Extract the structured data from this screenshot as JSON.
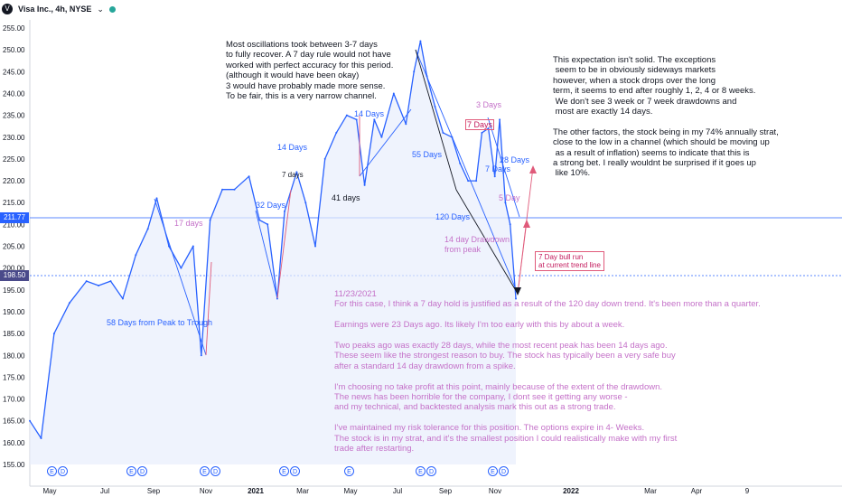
{
  "header": {
    "logo_glyph": "V",
    "title": "Visa Inc., 4h, NYSE",
    "chevron": "⌄"
  },
  "price_tags": {
    "current": "211.77",
    "level": "198.50"
  },
  "chart_data": {
    "type": "line",
    "title": "Visa Inc., 4h, NYSE",
    "xlabel": "",
    "ylabel": "",
    "ylim": [
      152.5,
      255
    ],
    "yticks": [
      "255.00",
      "250.00",
      "245.00",
      "240.00",
      "235.00",
      "230.00",
      "225.00",
      "220.00",
      "215.00",
      "210.00",
      "205.00",
      "200.00",
      "195.00",
      "190.00",
      "185.00",
      "180.00",
      "175.00",
      "170.00",
      "165.00",
      "160.00",
      "155.00"
    ],
    "xticks": [
      "May",
      "Jul",
      "Sep",
      "Nov",
      "2021",
      "Mar",
      "May",
      "Jul",
      "Sep",
      "Nov",
      "2022",
      "Mar",
      "Apr",
      "9"
    ],
    "x": [
      "2020-04-01",
      "2020-04-15",
      "2020-05-01",
      "2020-05-20",
      "2020-06-10",
      "2020-06-25",
      "2020-07-10",
      "2020-07-25",
      "2020-08-10",
      "2020-08-25",
      "2020-09-05",
      "2020-09-20",
      "2020-10-05",
      "2020-10-20",
      "2020-10-30",
      "2020-11-10",
      "2020-11-25",
      "2020-12-10",
      "2020-12-28",
      "2021-01-10",
      "2021-01-20",
      "2021-02-01",
      "2021-02-10",
      "2021-02-25",
      "2021-03-08",
      "2021-03-20",
      "2021-04-01",
      "2021-04-15",
      "2021-04-28",
      "2021-05-10",
      "2021-05-20",
      "2021-06-01",
      "2021-06-10",
      "2021-06-25",
      "2021-07-10",
      "2021-07-20",
      "2021-07-28",
      "2021-08-05",
      "2021-08-15",
      "2021-08-25",
      "2021-09-05",
      "2021-09-15",
      "2021-09-25",
      "2021-10-05",
      "2021-10-12",
      "2021-10-20",
      "2021-10-28",
      "2021-11-03",
      "2021-11-10",
      "2021-11-16",
      "2021-11-23"
    ],
    "series": [
      {
        "values": [
          165,
          161,
          185,
          192,
          197,
          196,
          197,
          193,
          203,
          209,
          216,
          205,
          200,
          205,
          180,
          211,
          218,
          218,
          221,
          211,
          210,
          193,
          213,
          222,
          215,
          205,
          225,
          231,
          235,
          234,
          219,
          234,
          230,
          240,
          233,
          245,
          252,
          244,
          237,
          231,
          230,
          224,
          220,
          220,
          231,
          232,
          221,
          234,
          215,
          210,
          193
        ]
      }
    ],
    "annotations": {
      "top_note": "Most oscillations took between 3-7 days\nto fully recover. A 7 day rule would not have\nworked with perfect accuracy for this period.\n(although it would have been okay)\n3 would have probably made more sense.\nTo be fair, this is a very narrow channel.",
      "right_note": "This expectation isn't solid. The exceptions\n seem to be in obviously sideways markets\nhowever, when a stock drops over the long\nterm, it seems to end after roughly 1, 2, 4 or 8 weeks.\n We don't see 3 week or 7 week drawdowns and\n most are exactly 14 days.\n\nThe other factors, the stock being in my 74% annually strat,\nclose to the low in a channel (which should be moving up\n as a result of inflation) seems to indicate that this is\na strong bet. I really wouldnt be surprised if it goes up\n like 10%.",
      "bottom_note": "11/23/2021\nFor this case, I think a 7 day hold is justified as a result of the 120 day down trend. It's been more than a quarter.\n\nEarnings were 23 Days ago. Its likely I'm too early with this by about a week.\n\nTwo peaks ago was exactly 28 days, while the most recent peak has been 14 days ago.\nThese seem like the strongest reason to buy. The stock has typically been a very safe buy\nafter a standard 14 day drawdown from a spike.\n\nI'm choosing no take profit at this point, mainly because of the extent of the drawdown.\nThe news has been horrible for the company, I dont see it getting any worse -\nand my technical, and backtested analysis mark this out as a strong trade.\n\nI've maintained my risk tolerance for this position. The options expire in 4- Weeks.\nThe stock is in my strat, and it's the smallest position I could realistically make with my first\ntrade after restarting.",
      "bull_box": "7 Day bull run\nat current trend line",
      "labels": {
        "d17": "17 days",
        "d58": "58 Days from Peak to Trough",
        "d32": "32 Days",
        "d14a": "14 Days",
        "d7": "7 days",
        "d14b": "14 Days",
        "d41": "41 days",
        "d55": "55 Days",
        "d120": "120 Days",
        "d3": "3 Days",
        "d7b": "7 Days",
        "d7c": "7 Days",
        "d28": "28 Days",
        "d5": "5 Day",
        "drawdown": "14 day Drawdown\nfrom peak"
      }
    },
    "events": [
      {
        "label": "E"
      },
      {
        "label": "D"
      },
      {
        "label": "E"
      },
      {
        "label": "D"
      },
      {
        "label": "E"
      },
      {
        "label": "D"
      },
      {
        "label": "E"
      },
      {
        "label": "D"
      },
      {
        "label": "E"
      },
      {
        "label": "E"
      },
      {
        "label": "D"
      },
      {
        "label": "E"
      },
      {
        "label": "D"
      }
    ],
    "colors": {
      "line": "#2962ff",
      "fill": "#e8eefc",
      "annotation_pink": "#c471c8",
      "arrow_red": "#e05a7a",
      "level_line": "#2962ff"
    },
    "grid": false
  }
}
